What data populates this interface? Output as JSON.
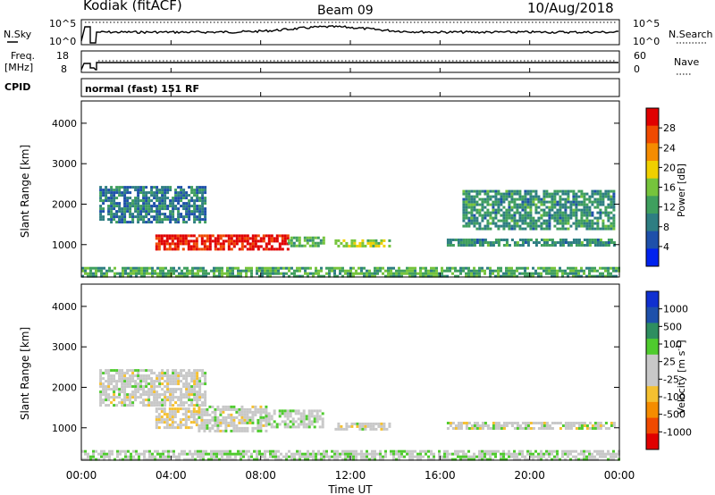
{
  "header": {
    "site": "Kodiak (fitACF)",
    "beam": "Beam 09",
    "date": "10/Aug/2018"
  },
  "nsky": {
    "label": "N.Sky",
    "ticks": [
      "10^5",
      "10^0"
    ],
    "right_label": "N.Search",
    "right_ticks": [
      "10^5",
      "10^0"
    ]
  },
  "freq": {
    "label_line1": "Freq.",
    "label_line2": "[MHz]",
    "ticks": [
      "18",
      "8"
    ],
    "right_label": "Nave",
    "right_ticks": [
      "60",
      "0"
    ]
  },
  "cpid": {
    "label": "CPID",
    "text": "normal (fast) 151 RF"
  },
  "axes": {
    "ylabel": "Slant Range [km]",
    "yticks": [
      "4000",
      "3000",
      "2000",
      "1000"
    ],
    "xticks": [
      "00:00",
      "04:00",
      "08:00",
      "12:00",
      "16:00",
      "20:00",
      "00:00"
    ],
    "xlabel": "Time UT"
  },
  "colors": {
    "power": [
      "#0022ee",
      "#1e50aa",
      "#2e7e82",
      "#3f9f5e",
      "#76c43c",
      "#f0d000",
      "#f58c00",
      "#f04a00",
      "#e00000"
    ],
    "velocity": [
      "#e00000",
      "#f04a00",
      "#f58c00",
      "#f5c030",
      "#c8c8c8",
      "#c8c8c8",
      "#4fcb2e",
      "#2e8e60",
      "#1e50aa",
      "#1030d0"
    ]
  },
  "chart_data": [
    {
      "type": "heatmap",
      "quantity": "Power",
      "ylabel": "Slant Range [km]",
      "xlabel": "",
      "xlim_hours": [
        0,
        24
      ],
      "ylim_km": [
        200,
        4550
      ],
      "colorbar": {
        "label": "Power [dB]",
        "ticks": [
          "28",
          "24",
          "20",
          "16",
          "12",
          "8",
          "4"
        ],
        "range": [
          0,
          30
        ]
      },
      "features": [
        {
          "t_start_h": 3.3,
          "t_end_h": 9.2,
          "range_km": [
            900,
            1250
          ],
          "value_db": 28
        },
        {
          "t_start_h": 9.2,
          "t_end_h": 10.8,
          "range_km": [
            950,
            1200
          ],
          "value_db": 12
        },
        {
          "t_start_h": 11.3,
          "t_end_h": 13.8,
          "range_km": [
            950,
            1130
          ],
          "value_db": 16
        },
        {
          "t_start_h": 16.3,
          "t_end_h": 23.8,
          "range_km": [
            1000,
            1150
          ],
          "value_db": 10
        },
        {
          "t_start_h": 0.8,
          "t_end_h": 5.5,
          "range_km": [
            1550,
            2450
          ],
          "value_db": 8
        },
        {
          "t_start_h": 17.0,
          "t_end_h": 23.8,
          "range_km": [
            1400,
            2350
          ],
          "value_db": 10
        },
        {
          "t_start_h": 0.0,
          "t_end_h": 24.0,
          "range_km": [
            200,
            450
          ],
          "value_db": 12
        }
      ]
    },
    {
      "type": "heatmap",
      "quantity": "Velocity",
      "ylabel": "Slant Range [km]",
      "xlabel": "Time UT",
      "xlim_hours": [
        0,
        24
      ],
      "ylim_km": [
        200,
        4550
      ],
      "colorbar": {
        "label": "Velocity [m s^-1]",
        "ticks": [
          "1000",
          "500",
          "100",
          "25",
          "-25",
          "-100",
          "-500",
          "-1000"
        ],
        "range": [
          -1000,
          1000
        ]
      },
      "features": [
        {
          "t_start_h": 3.3,
          "t_end_h": 5.2,
          "range_km": [
            1000,
            1500
          ],
          "value_ms": -100
        },
        {
          "t_start_h": 5.2,
          "t_end_h": 8.2,
          "range_km": [
            900,
            1550
          ],
          "value_ms": 0
        },
        {
          "t_start_h": 8.2,
          "t_end_h": 10.8,
          "range_km": [
            1000,
            1450
          ],
          "value_ms": 100
        },
        {
          "t_start_h": 11.3,
          "t_end_h": 13.8,
          "range_km": [
            950,
            1130
          ],
          "value_ms": 0
        },
        {
          "t_start_h": 16.3,
          "t_end_h": 23.8,
          "range_km": [
            1000,
            1150
          ],
          "value_ms": 0
        },
        {
          "t_start_h": 0.8,
          "t_end_h": 5.5,
          "range_km": [
            1550,
            2450
          ],
          "value_ms": 0
        },
        {
          "t_start_h": 0.0,
          "t_end_h": 24.0,
          "range_km": [
            200,
            450
          ],
          "value_ms": 100
        }
      ]
    }
  ]
}
